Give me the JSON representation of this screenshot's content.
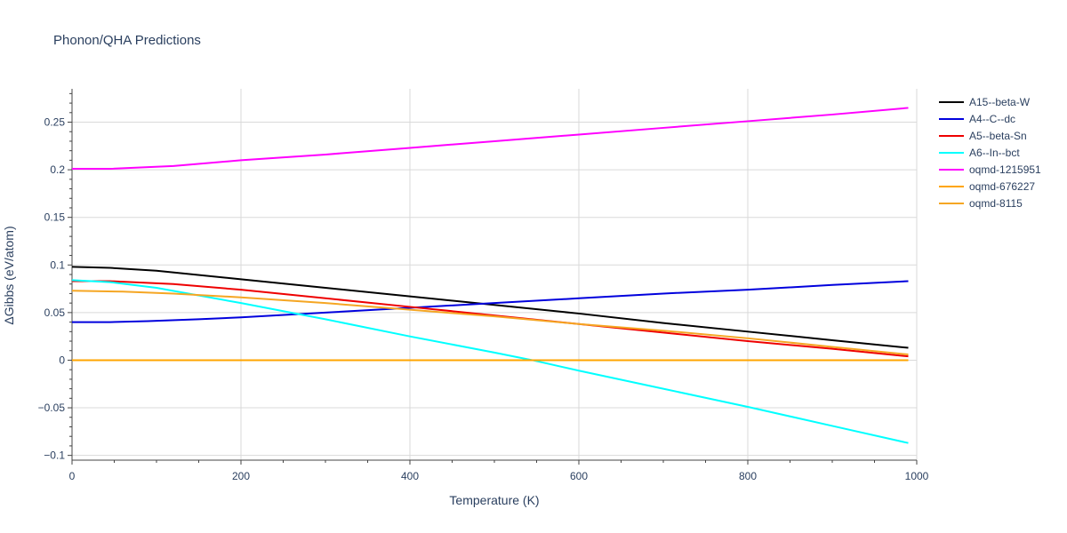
{
  "chart_data": {
    "type": "line",
    "title": "Phonon/QHA Predictions",
    "xlabel": "Temperature (K)",
    "ylabel": "ΔGibbs (eV/atom)",
    "xlim": [
      0,
      1000
    ],
    "ylim": [
      -0.105,
      0.285
    ],
    "xticks": [
      0,
      200,
      400,
      600,
      800,
      1000
    ],
    "xtick_labels": [
      "0",
      "200",
      "400",
      "600",
      "800",
      "1000"
    ],
    "yticks": [
      -0.1,
      -0.05,
      0,
      0.05,
      0.1,
      0.15,
      0.2,
      0.25
    ],
    "ytick_labels": [
      "−0.1",
      "−0.05",
      "0",
      "0.05",
      "0.1",
      "0.15",
      "0.2",
      "0.25"
    ],
    "grid": true,
    "legend_position": "top-right",
    "series": [
      {
        "name": "A15--beta-W",
        "color": "#000000",
        "x": [
          0,
          45,
          100,
          200,
          300,
          400,
          500,
          600,
          700,
          800,
          900,
          990
        ],
        "y": [
          0.098,
          0.097,
          0.094,
          0.085,
          0.076,
          0.067,
          0.058,
          0.049,
          0.039,
          0.03,
          0.021,
          0.013
        ]
      },
      {
        "name": "A4--C--dc",
        "color": "#0000dd",
        "x": [
          0,
          45,
          90,
          150,
          200,
          300,
          400,
          500,
          600,
          700,
          800,
          900,
          990
        ],
        "y": [
          0.04,
          0.04,
          0.041,
          0.043,
          0.045,
          0.05,
          0.055,
          0.06,
          0.065,
          0.07,
          0.074,
          0.079,
          0.083
        ]
      },
      {
        "name": "A5--beta-Sn",
        "color": "#ee0000",
        "x": [
          0,
          45,
          120,
          200,
          300,
          400,
          500,
          600,
          700,
          800,
          900,
          990
        ],
        "y": [
          0.083,
          0.083,
          0.08,
          0.074,
          0.065,
          0.056,
          0.047,
          0.038,
          0.029,
          0.02,
          0.012,
          0.004
        ]
      },
      {
        "name": "A6--In--bct",
        "color": "#00ffff",
        "x": [
          0,
          45,
          100,
          200,
          300,
          400,
          500,
          545,
          600,
          700,
          800,
          900,
          990
        ],
        "y": [
          0.084,
          0.082,
          0.076,
          0.06,
          0.043,
          0.025,
          0.008,
          0.0,
          -0.011,
          -0.03,
          -0.049,
          -0.069,
          -0.087
        ]
      },
      {
        "name": "oqmd-1215951",
        "color": "#ff00ff",
        "x": [
          0,
          45,
          120,
          200,
          300,
          400,
          500,
          600,
          700,
          800,
          900,
          990
        ],
        "y": [
          0.201,
          0.201,
          0.204,
          0.21,
          0.216,
          0.223,
          0.23,
          0.237,
          0.244,
          0.251,
          0.258,
          0.265
        ]
      },
      {
        "name": "oqmd-676227",
        "color": "#ffa500",
        "x": [
          0,
          990
        ],
        "y": [
          0.0,
          0.0
        ]
      },
      {
        "name": "oqmd-8115",
        "color": "#f5a623",
        "x": [
          0,
          60,
          120,
          200,
          300,
          400,
          500,
          600,
          700,
          800,
          900,
          990
        ],
        "y": [
          0.073,
          0.072,
          0.07,
          0.066,
          0.06,
          0.053,
          0.046,
          0.038,
          0.031,
          0.023,
          0.014,
          0.006
        ]
      }
    ]
  }
}
